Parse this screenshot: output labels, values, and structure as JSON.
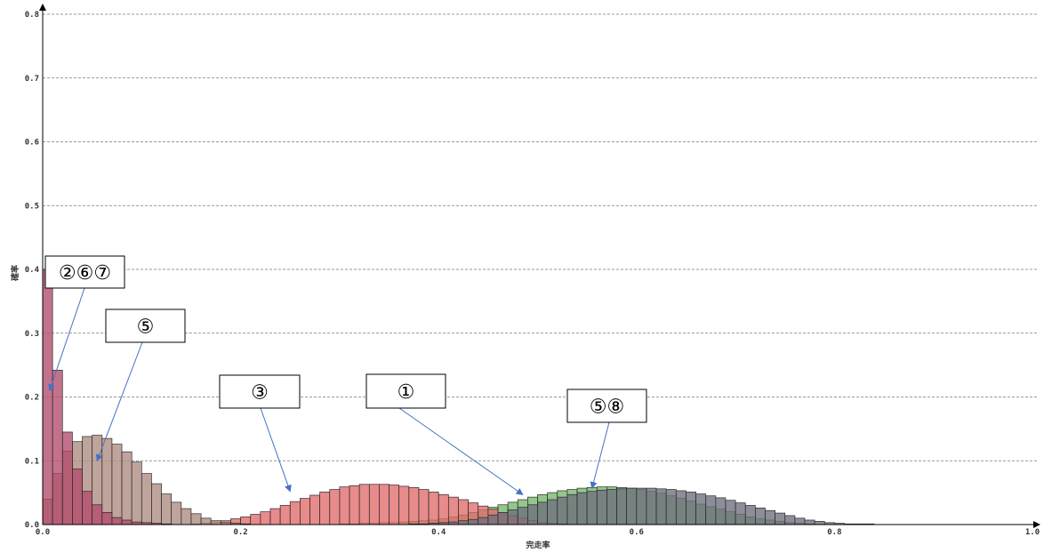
{
  "colors": {
    "series_1": "#74b66a",
    "series_3": "#e06a6a",
    "series_5": "#ad8b80",
    "series_58": "#6e6e7e",
    "series_267": "#b24a6c",
    "arrow": "#4472c4",
    "grid": "#777777"
  },
  "chart_data": {
    "type": "bar",
    "xlabel": "完走率",
    "ylabel": "確率",
    "xlim": [
      0,
      1
    ],
    "ylim": [
      0,
      0.8
    ],
    "x_ticks": [
      "0.0",
      "0.2",
      "0.4",
      "0.6",
      "0.8",
      "1.0"
    ],
    "y_ticks": [
      "0.0",
      "0.1",
      "0.2",
      "0.3",
      "0.4",
      "0.5",
      "0.6",
      "0.7",
      "0.8"
    ],
    "grid": "horizontal dashed",
    "bin_width": 0.01,
    "series": [
      {
        "colorKey": "series_1",
        "x_start": 0.3,
        "values": [
          0.001,
          0.001,
          0.002,
          0.002,
          0.003,
          0.003,
          0.004,
          0.005,
          0.006,
          0.007,
          0.009,
          0.012,
          0.015,
          0.019,
          0.023,
          0.027,
          0.031,
          0.035,
          0.039,
          0.043,
          0.047,
          0.05,
          0.053,
          0.055,
          0.057,
          0.058,
          0.059,
          0.059,
          0.058,
          0.057,
          0.055,
          0.052,
          0.049,
          0.045,
          0.041,
          0.037,
          0.032,
          0.028,
          0.024,
          0.02,
          0.016,
          0.012,
          0.009,
          0.007,
          0.005,
          0.003,
          0.002,
          0.001
        ]
      },
      {
        "colorKey": "series_3",
        "x_start": 0.15,
        "values": [
          0.001,
          0.002,
          0.004,
          0.006,
          0.009,
          0.012,
          0.016,
          0.02,
          0.025,
          0.03,
          0.036,
          0.041,
          0.046,
          0.051,
          0.055,
          0.059,
          0.061,
          0.063,
          0.063,
          0.063,
          0.062,
          0.06,
          0.058,
          0.055,
          0.051,
          0.047,
          0.043,
          0.039,
          0.034,
          0.029,
          0.024,
          0.019,
          0.014,
          0.01,
          0.006,
          0.003,
          0.002,
          0.001
        ]
      },
      {
        "colorKey": "series_5",
        "x_start": 0.0,
        "values": [
          0.04,
          0.08,
          0.115,
          0.13,
          0.138,
          0.14,
          0.135,
          0.126,
          0.114,
          0.098,
          0.08,
          0.064,
          0.048,
          0.035,
          0.025,
          0.017,
          0.01,
          0.006,
          0.003,
          0.002,
          0.001
        ]
      },
      {
        "colorKey": "series_58",
        "x_start": 0.37,
        "values": [
          0.001,
          0.001,
          0.002,
          0.003,
          0.004,
          0.006,
          0.008,
          0.011,
          0.015,
          0.019,
          0.023,
          0.027,
          0.031,
          0.035,
          0.039,
          0.043,
          0.047,
          0.05,
          0.052,
          0.054,
          0.055,
          0.056,
          0.057,
          0.057,
          0.057,
          0.056,
          0.055,
          0.053,
          0.051,
          0.048,
          0.045,
          0.042,
          0.038,
          0.034,
          0.03,
          0.026,
          0.022,
          0.018,
          0.014,
          0.01,
          0.007,
          0.005,
          0.003,
          0.002,
          0.001,
          0.001,
          0.001
        ]
      },
      {
        "colorKey": "series_267",
        "x_start": 0.0,
        "values": [
          0.4,
          0.242,
          0.145,
          0.087,
          0.052,
          0.031,
          0.019,
          0.011,
          0.007,
          0.004,
          0.003,
          0.002,
          0.001
        ]
      }
    ],
    "annotations": [
      {
        "label": "②⑥⑦",
        "target": [
          0.007,
          0.21
        ]
      },
      {
        "label": "⑤",
        "target": [
          0.055,
          0.1
        ]
      },
      {
        "label": "③",
        "target": [
          0.25,
          0.052
        ]
      },
      {
        "label": "①",
        "target": [
          0.485,
          0.047
        ]
      },
      {
        "label": "⑤⑧",
        "target": [
          0.555,
          0.057
        ]
      }
    ]
  }
}
